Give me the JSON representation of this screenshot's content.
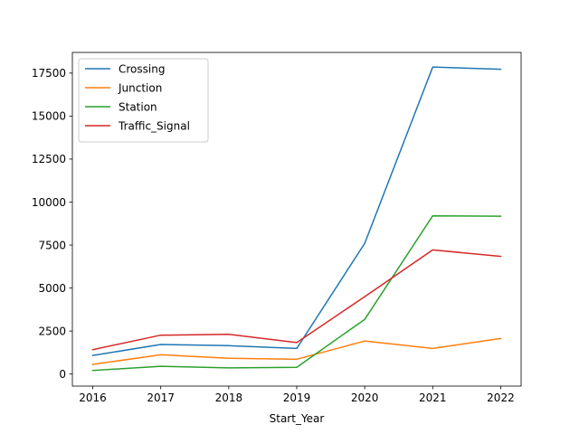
{
  "chart_data": {
    "type": "line",
    "title": "",
    "xlabel": "Start_Year",
    "ylabel": "",
    "x": [
      2016,
      2017,
      2018,
      2019,
      2020,
      2021,
      2022
    ],
    "xticks": [
      "2016",
      "2017",
      "2018",
      "2019",
      "2020",
      "2021",
      "2022"
    ],
    "xlim": [
      2015.7,
      2022.3
    ],
    "ylim": [
      -700,
      18700
    ],
    "yticks": [
      0,
      2500,
      5000,
      7500,
      10000,
      12500,
      15000,
      17500
    ],
    "ytick_labels": [
      "0",
      "2500",
      "5000",
      "7500",
      "10000",
      "12500",
      "15000",
      "17500"
    ],
    "grid": false,
    "legend": {
      "placement": "top-left"
    },
    "series": [
      {
        "name": "Crossing",
        "color": "#1f77b4",
        "values": [
          1080,
          1720,
          1650,
          1490,
          7600,
          17850,
          17720
        ]
      },
      {
        "name": "Junction",
        "color": "#ff7f0e",
        "values": [
          560,
          1120,
          920,
          860,
          1920,
          1490,
          2070
        ]
      },
      {
        "name": "Station",
        "color": "#2ca02c",
        "values": [
          210,
          450,
          360,
          390,
          3180,
          9200,
          9180
        ]
      },
      {
        "name": "Traffic_Signal",
        "color": "#d62728",
        "values": [
          1420,
          2260,
          2310,
          1830,
          4500,
          7220,
          6840
        ]
      }
    ]
  }
}
